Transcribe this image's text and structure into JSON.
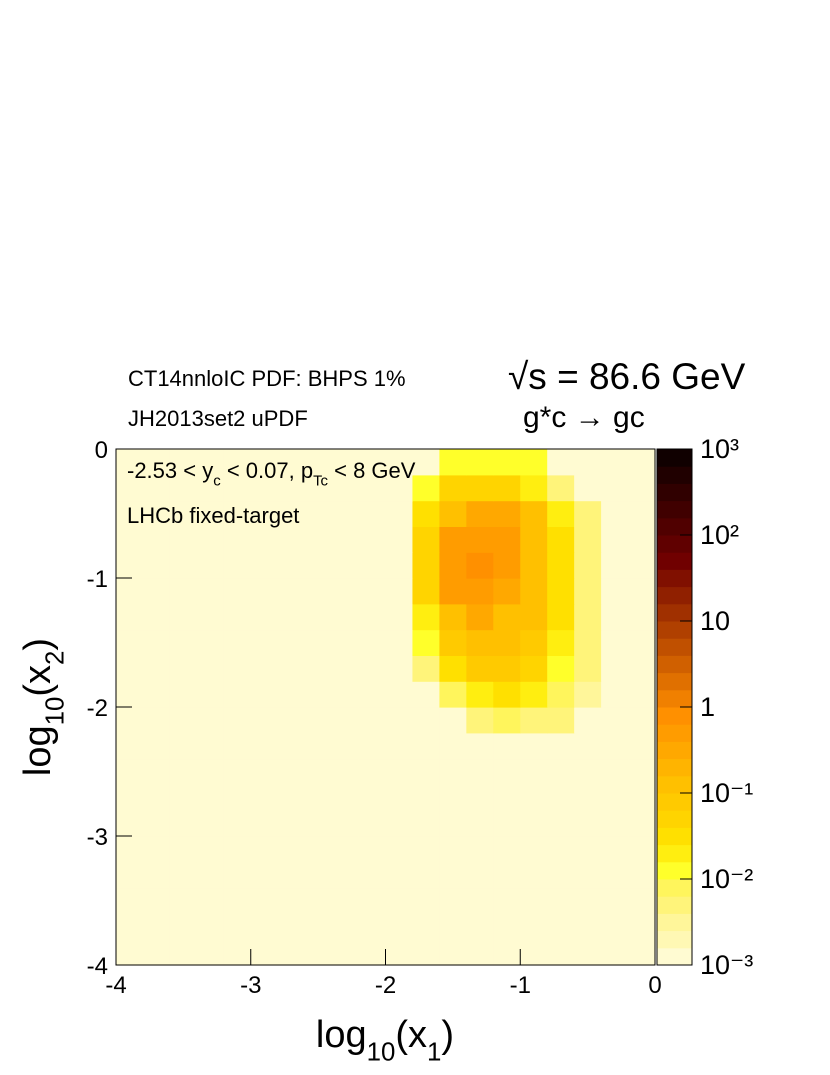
{
  "chart_data": {
    "type": "heatmap",
    "annotations": [
      "CT14nnloIC PDF: BHPS 1%",
      "JH2013set2 uPDF",
      "√s = 86.6 GeV",
      "g*c → gc",
      "LHCb fixed-target"
    ],
    "cut_label": [
      "-2.53 < y",
      "c",
      " < 0.07, p",
      "Tc",
      " < 8 GeV"
    ],
    "x_label": [
      "log",
      "10",
      "(x",
      "1",
      ")"
    ],
    "y_label": [
      "log",
      "10",
      "(x",
      "2",
      ")"
    ],
    "xlim": [
      -4,
      0
    ],
    "xticks": [
      -4,
      -3,
      -2,
      -1,
      0
    ],
    "ylim": [
      -4,
      0
    ],
    "yticks": [
      -4,
      -3,
      -2,
      -1,
      0
    ],
    "zlim": [
      0.001,
      1000
    ],
    "zlog": true,
    "zticks": [
      {
        "value": 0.001,
        "label": "10⁻³"
      },
      {
        "value": 0.01,
        "label": "10⁻²"
      },
      {
        "value": 0.1,
        "label": "10⁻¹"
      },
      1,
      10,
      {
        "value": 100,
        "label": "10²"
      },
      {
        "value": 1000,
        "label": "10³"
      }
    ],
    "colors": [
      "#fffbd2",
      "#fff8b4",
      "#fff69a",
      "#fff47a",
      "#fff55c",
      "#ffff2a",
      "#ffee10",
      "#ffe000",
      "#ffd400",
      "#ffca00",
      "#ffc000",
      "#ffb400",
      "#ffa800",
      "#ff9c00",
      "#ff9000",
      "#f08000",
      "#e07000",
      "#d06000",
      "#c05000",
      "#b04000",
      "#a03000",
      "#902000",
      "#801000",
      "#700000",
      "#600000",
      "#500000",
      "#400000",
      "#300000",
      "#200000",
      "#100000"
    ],
    "xbins": [
      -4,
      -3.8,
      -3.6,
      -3.4,
      -3.2,
      -3,
      -2.8,
      -2.6,
      -2.4,
      -2.2,
      -2,
      -1.8,
      -1.6,
      -1.4,
      -1.2,
      -1,
      -0.8,
      -0.6,
      -0.4,
      -0.2,
      0
    ],
    "ybins": [
      -4,
      -3.8,
      -3.6,
      -3.4,
      -3.2,
      -3,
      -2.8,
      -2.6,
      -2.4,
      -2.2,
      -2,
      -1.8,
      -1.6,
      -1.4,
      -1.2,
      -1,
      -0.8,
      -0.6,
      -0.4,
      -0.2,
      0
    ],
    "z": [
      [
        0.0015,
        0.0015,
        0.0015,
        0.0015,
        0.0015,
        0.0015,
        0.0015,
        0.0015,
        0.0015,
        0.0015,
        0.0015,
        0.0015,
        0.0015,
        0.0015,
        0.0015,
        0.0015,
        0.0015,
        0.0015,
        0.0015,
        0.0015
      ],
      [
        0.0015,
        0.0015,
        0.0015,
        0.0015,
        0.0015,
        0.0015,
        0.0015,
        0.0015,
        0.0015,
        0.0015,
        0.0015,
        0.0015,
        0.0015,
        0.0015,
        0.0015,
        0.0015,
        0.0015,
        0.0015,
        0.0015,
        0.0015
      ],
      [
        0.0015,
        0.0015,
        0.0015,
        0.0015,
        0.0015,
        0.0015,
        0.0015,
        0.0015,
        0.0015,
        0.0015,
        0.0015,
        0.0015,
        0.0015,
        0.0015,
        0.0015,
        0.0015,
        0.0015,
        0.0015,
        0.0015,
        0.0015
      ],
      [
        0.0015,
        0.0015,
        0.0015,
        0.0015,
        0.0015,
        0.0015,
        0.0015,
        0.0015,
        0.0015,
        0.0015,
        0.0015,
        0.0015,
        0.0015,
        0.0015,
        0.0015,
        0.0015,
        0.0015,
        0.0015,
        0.0015,
        0.0015
      ],
      [
        0.0015,
        0.0015,
        0.0015,
        0.0015,
        0.0015,
        0.0015,
        0.0015,
        0.0015,
        0.0015,
        0.0015,
        0.0015,
        0.0015,
        0.0015,
        0.0015,
        0.0015,
        0.0015,
        0.0015,
        0.0015,
        0.0015,
        0.0015
      ],
      [
        0.0015,
        0.0015,
        0.0015,
        0.0015,
        0.0015,
        0.0015,
        0.0015,
        0.0015,
        0.0015,
        0.0015,
        0.0015,
        0.0015,
        0.0015,
        0.0015,
        0.0015,
        0.0015,
        0.0015,
        0.0015,
        0.0015,
        0.0015
      ],
      [
        0.0015,
        0.0015,
        0.0015,
        0.0015,
        0.0015,
        0.0015,
        0.0015,
        0.0015,
        0.0015,
        0.0015,
        0.0015,
        0.0015,
        0.0015,
        0.0015,
        0.0015,
        0.0015,
        0.0015,
        0.0015,
        0.0015,
        0.0015
      ],
      [
        0.0015,
        0.0015,
        0.0015,
        0.0015,
        0.0015,
        0.0015,
        0.0015,
        0.0015,
        0.0015,
        0.0015,
        0.0015,
        0.0015,
        0.0015,
        0.0015,
        0.0015,
        0.0015,
        0.0015,
        0.0015,
        0.0015,
        0.0015
      ],
      [
        0.0015,
        0.0015,
        0.0015,
        0.0015,
        0.0015,
        0.0015,
        0.0015,
        0.0015,
        0.0015,
        0.0015,
        0.0015,
        0.0015,
        0.0015,
        0.0015,
        0.0015,
        0.0015,
        0.0015,
        0.0015,
        0.0015,
        0.0015
      ],
      [
        0.0015,
        0.0015,
        0.0015,
        0.0015,
        0.0015,
        0.0015,
        0.0015,
        0.0015,
        0.0015,
        0.0015,
        0.0015,
        0.0015,
        0.0015,
        0.005,
        0.008,
        0.006,
        0.004,
        0.0015,
        0.0015,
        0.0015
      ],
      [
        0.0015,
        0.0015,
        0.0015,
        0.0015,
        0.0015,
        0.0015,
        0.0015,
        0.0015,
        0.0015,
        0.0015,
        0.0015,
        0.0015,
        0.008,
        0.02,
        0.03,
        0.02,
        0.008,
        0.003,
        0.0015,
        0.0015
      ],
      [
        0.0015,
        0.0015,
        0.0015,
        0.0015,
        0.0015,
        0.0015,
        0.0015,
        0.0015,
        0.0015,
        0.0015,
        0.0015,
        0.005,
        0.03,
        0.08,
        0.08,
        0.05,
        0.015,
        0.004,
        0.0015,
        0.0015
      ],
      [
        0.0015,
        0.0015,
        0.0015,
        0.0015,
        0.0015,
        0.0015,
        0.0015,
        0.0015,
        0.0015,
        0.0015,
        0.0015,
        0.01,
        0.07,
        0.12,
        0.12,
        0.08,
        0.02,
        0.005,
        0.0015,
        0.0015
      ],
      [
        0.0015,
        0.0015,
        0.0015,
        0.0015,
        0.0015,
        0.0015,
        0.0015,
        0.0015,
        0.0015,
        0.0015,
        0.0015,
        0.02,
        0.15,
        0.3,
        0.15,
        0.1,
        0.03,
        0.006,
        0.0015,
        0.0015
      ],
      [
        0.0015,
        0.0015,
        0.0015,
        0.0015,
        0.0015,
        0.0015,
        0.0015,
        0.0015,
        0.0015,
        0.0015,
        0.0015,
        0.04,
        0.4,
        0.6,
        0.35,
        0.12,
        0.03,
        0.006,
        0.0015,
        0.0015
      ],
      [
        0.0015,
        0.0015,
        0.0015,
        0.0015,
        0.0015,
        0.0015,
        0.0015,
        0.0015,
        0.0015,
        0.0015,
        0.0015,
        0.05,
        0.5,
        0.7,
        0.5,
        0.15,
        0.03,
        0.006,
        0.0015,
        0.0015
      ],
      [
        0.0015,
        0.0015,
        0.0015,
        0.0015,
        0.0015,
        0.0015,
        0.0015,
        0.0015,
        0.0015,
        0.0015,
        0.0015,
        0.05,
        0.4,
        0.6,
        0.5,
        0.15,
        0.03,
        0.005,
        0.0015,
        0.0015
      ],
      [
        0.0015,
        0.0015,
        0.0015,
        0.0015,
        0.0015,
        0.0015,
        0.0015,
        0.0015,
        0.0015,
        0.0015,
        0.0015,
        0.03,
        0.15,
        0.3,
        0.3,
        0.1,
        0.02,
        0.004,
        0.0015,
        0.0015
      ],
      [
        0.0015,
        0.0015,
        0.0015,
        0.0015,
        0.0015,
        0.0015,
        0.0015,
        0.0015,
        0.0015,
        0.0015,
        0.0015,
        0.01,
        0.05,
        0.06,
        0.05,
        0.02,
        0.005,
        0.0015,
        0.0015,
        0.0015
      ],
      [
        0.0015,
        0.0015,
        0.0015,
        0.0015,
        0.0015,
        0.0015,
        0.0015,
        0.0015,
        0.0015,
        0.0015,
        0.0015,
        0.0015,
        0.01,
        0.01,
        0.01,
        0.01,
        0.0015,
        0.0015,
        0.0015,
        0.0015
      ]
    ]
  }
}
